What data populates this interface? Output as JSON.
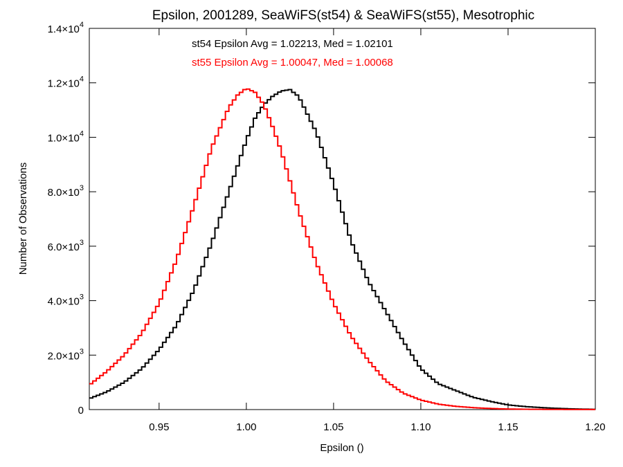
{
  "chart_data": {
    "type": "line",
    "title": "Epsilon, 2001289, SeaWiFS(st54) & SeaWiFS(st55), Mesotrophic",
    "xlabel": "Epsilon ()",
    "ylabel": "Number of Observations",
    "xlim": [
      0.91,
      1.2
    ],
    "ylim": [
      0,
      14000
    ],
    "x_ticks": [
      {
        "value": 0.95,
        "label": "0.95"
      },
      {
        "value": 1.0,
        "label": "1.00"
      },
      {
        "value": 1.05,
        "label": "1.05"
      },
      {
        "value": 1.1,
        "label": "1.10"
      },
      {
        "value": 1.15,
        "label": "1.15"
      },
      {
        "value": 1.2,
        "label": "1.20"
      }
    ],
    "y_ticks": [
      {
        "value": 0,
        "mantissa": "0",
        "exp": ""
      },
      {
        "value": 2000,
        "mantissa": "2.0×10",
        "exp": "3"
      },
      {
        "value": 4000,
        "mantissa": "4.0×10",
        "exp": "3"
      },
      {
        "value": 6000,
        "mantissa": "6.0×10",
        "exp": "3"
      },
      {
        "value": 8000,
        "mantissa": "8.0×10",
        "exp": "3"
      },
      {
        "value": 10000,
        "mantissa": "1.0×10",
        "exp": "4"
      },
      {
        "value": 12000,
        "mantissa": "1.2×10",
        "exp": "4"
      },
      {
        "value": 14000,
        "mantissa": "1.4×10",
        "exp": "4"
      }
    ],
    "grid": false,
    "annotations": [
      {
        "text": "st54 Epsilon Avg = 1.02213, Med = 1.02101",
        "color": "#000000"
      },
      {
        "text": "st55 Epsilon Avg = 1.00047, Med = 1.00068",
        "color": "#ff0000"
      }
    ],
    "series": [
      {
        "color": "#000000",
        "x": [
          0.91,
          0.92,
          0.93,
          0.94,
          0.95,
          0.96,
          0.97,
          0.98,
          0.99,
          1.0,
          1.005,
          1.01,
          1.015,
          1.02,
          1.025,
          1.03,
          1.04,
          1.05,
          1.06,
          1.07,
          1.08,
          1.09,
          1.1,
          1.11,
          1.12,
          1.13,
          1.14,
          1.15,
          1.16,
          1.17,
          1.18,
          1.19,
          1.2
        ],
        "y": [
          400,
          650,
          1000,
          1500,
          2200,
          3100,
          4400,
          6100,
          8000,
          9900,
          10700,
          11200,
          11500,
          11700,
          11750,
          11500,
          10200,
          8300,
          6200,
          4700,
          3600,
          2500,
          1500,
          950,
          700,
          450,
          300,
          170,
          110,
          70,
          40,
          20,
          10
        ]
      },
      {
        "color": "#ff0000",
        "x": [
          0.91,
          0.92,
          0.93,
          0.94,
          0.95,
          0.96,
          0.97,
          0.98,
          0.99,
          0.995,
          1.0,
          1.005,
          1.01,
          1.015,
          1.02,
          1.03,
          1.04,
          1.05,
          1.06,
          1.07,
          1.08,
          1.09,
          1.1,
          1.11,
          1.12,
          1.13,
          1.14,
          1.15,
          1.16,
          1.17,
          1.18,
          1.19,
          1.2
        ],
        "y": [
          900,
          1400,
          2000,
          2800,
          3900,
          5500,
          7500,
          9600,
          11100,
          11550,
          11800,
          11650,
          11200,
          10400,
          9500,
          7300,
          5400,
          3900,
          2700,
          1800,
          1050,
          600,
          350,
          200,
          120,
          70,
          40,
          20,
          12,
          8,
          5,
          3,
          2
        ]
      }
    ]
  }
}
